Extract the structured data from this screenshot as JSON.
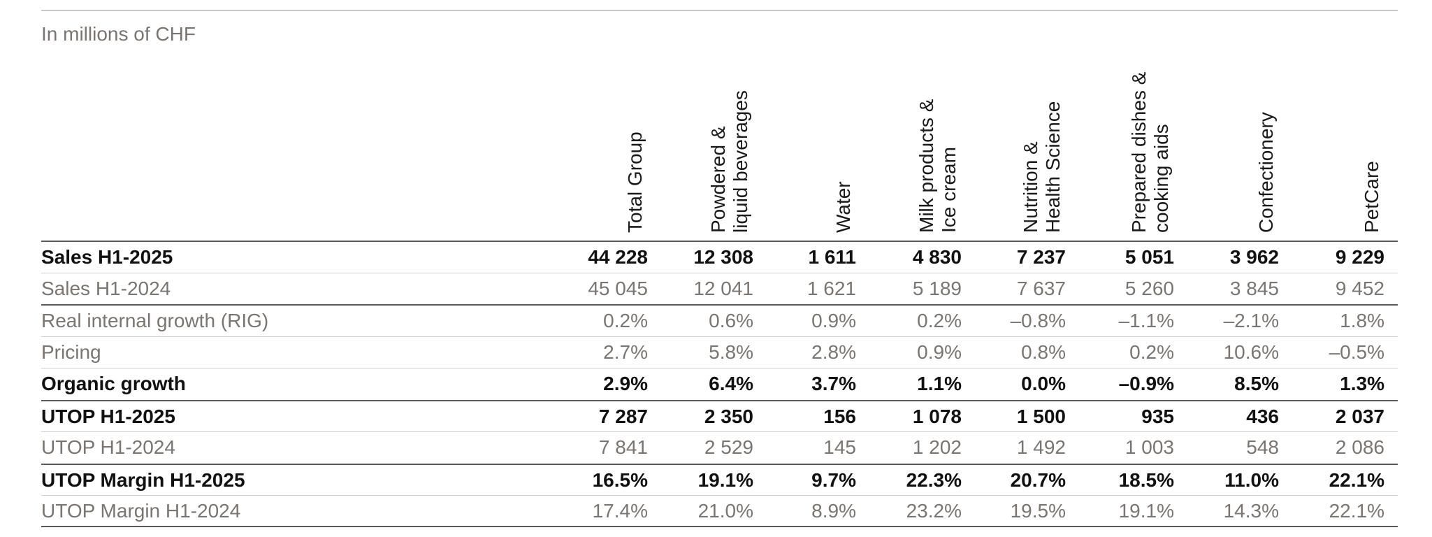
{
  "table": {
    "unit_caption": "In millions of CHF",
    "columns": [
      [
        "Total Group"
      ],
      [
        "Powdered &",
        "liquid beverages"
      ],
      [
        "Water"
      ],
      [
        "Milk products &",
        "Ice cream"
      ],
      [
        "Nutrition &",
        "Health Science"
      ],
      [
        "Prepared dishes &",
        "cooking aids"
      ],
      [
        "Confectionery"
      ],
      [
        "PetCare"
      ]
    ],
    "rows": [
      {
        "label": "Sales H1-2025",
        "bold": true,
        "values": [
          "44 228",
          "12 308",
          "1 611",
          "4 830",
          "7 237",
          "5 051",
          "3 962",
          "9 229"
        ]
      },
      {
        "label": "Sales H1-2024",
        "bold": false,
        "values": [
          "45 045",
          "12 041",
          "1 621",
          "5 189",
          "7 637",
          "5 260",
          "3 845",
          "9 452"
        ]
      },
      {
        "label": "Real internal growth (RIG)",
        "bold": false,
        "values": [
          "0.2%",
          "0.6%",
          "0.9%",
          "0.2%",
          "–0.8%",
          "–1.1%",
          "–2.1%",
          "1.8%"
        ]
      },
      {
        "label": "Pricing",
        "bold": false,
        "values": [
          "2.7%",
          "5.8%",
          "2.8%",
          "0.9%",
          "0.8%",
          "0.2%",
          "10.6%",
          "–0.5%"
        ]
      },
      {
        "label": "Organic growth",
        "bold": true,
        "values": [
          "2.9%",
          "6.4%",
          "3.7%",
          "1.1%",
          "0.0%",
          "–0.9%",
          "8.5%",
          "1.3%"
        ]
      },
      {
        "label": "UTOP H1-2025",
        "bold": true,
        "values": [
          "7 287",
          "2 350",
          "156",
          "1 078",
          "1 500",
          "935",
          "436",
          "2 037"
        ]
      },
      {
        "label": "UTOP H1-2024",
        "bold": false,
        "values": [
          "7 841",
          "2 529",
          "145",
          "1 202",
          "1 492",
          "1 003",
          "548",
          "2 086"
        ]
      },
      {
        "label": "UTOP Margin H1-2025",
        "bold": true,
        "values": [
          "16.5%",
          "19.1%",
          "9.7%",
          "22.3%",
          "20.7%",
          "18.5%",
          "11.0%",
          "22.1%"
        ]
      },
      {
        "label": "UTOP Margin H1-2024",
        "bold": false,
        "values": [
          "17.4%",
          "21.0%",
          "8.9%",
          "23.2%",
          "19.5%",
          "19.1%",
          "14.3%",
          "22.1%"
        ]
      }
    ]
  }
}
